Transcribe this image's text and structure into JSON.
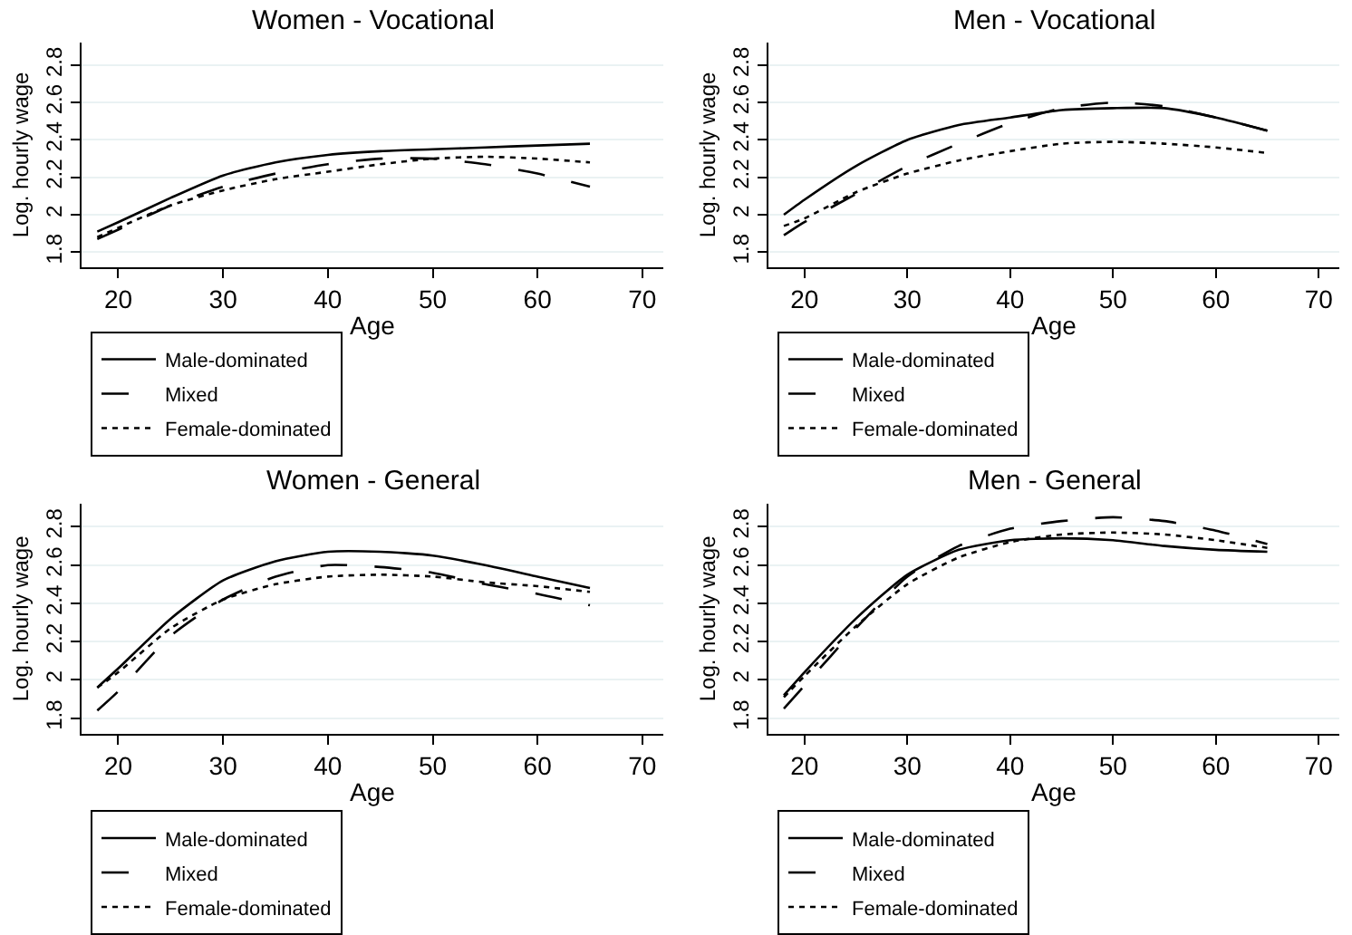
{
  "chart_data": [
    {
      "type": "line",
      "title": "Women - Vocational",
      "xlabel": "Age",
      "ylabel": "Log. hourly wage",
      "xlim": [
        16.5,
        72
      ],
      "ylim": [
        1.72,
        2.92
      ],
      "xticks": [
        20,
        30,
        40,
        50,
        60,
        70
      ],
      "yticks": [
        1.8,
        2,
        2.2,
        2.4,
        2.6,
        2.8
      ],
      "grid": "y",
      "legend": "bottom",
      "marker": "none",
      "x": [
        18,
        20,
        25,
        30,
        35,
        40,
        45,
        50,
        55,
        60,
        65
      ],
      "series": [
        {
          "name": "Male-dominated",
          "color": "#000000",
          "line_style": "solid",
          "values": [
            1.91,
            1.96,
            2.09,
            2.21,
            2.28,
            2.32,
            2.34,
            2.35,
            2.36,
            2.37,
            2.38
          ]
        },
        {
          "name": "Mixed",
          "color": "#000000",
          "line_style": "dashed",
          "values": [
            1.87,
            1.92,
            2.05,
            2.15,
            2.22,
            2.27,
            2.3,
            2.3,
            2.27,
            2.22,
            2.15
          ]
        },
        {
          "name": "Female-dominated",
          "color": "#000000",
          "line_style": "dotted",
          "values": [
            1.88,
            1.93,
            2.05,
            2.13,
            2.19,
            2.23,
            2.27,
            2.3,
            2.31,
            2.3,
            2.28
          ]
        }
      ]
    },
    {
      "type": "line",
      "title": "Men - Vocational",
      "xlabel": "Age",
      "ylabel": "Log. hourly wage",
      "xlim": [
        16.5,
        72
      ],
      "ylim": [
        1.72,
        2.92
      ],
      "xticks": [
        20,
        30,
        40,
        50,
        60,
        70
      ],
      "yticks": [
        1.8,
        2,
        2.2,
        2.4,
        2.6,
        2.8
      ],
      "grid": "y",
      "legend": "bottom",
      "marker": "none",
      "x": [
        18,
        20,
        25,
        30,
        35,
        40,
        45,
        50,
        55,
        60,
        65
      ],
      "series": [
        {
          "name": "Male-dominated",
          "color": "#000000",
          "line_style": "solid",
          "values": [
            2.0,
            2.08,
            2.26,
            2.4,
            2.48,
            2.52,
            2.56,
            2.57,
            2.57,
            2.52,
            2.45
          ]
        },
        {
          "name": "Mixed",
          "color": "#000000",
          "line_style": "dashed",
          "values": [
            1.89,
            1.96,
            2.11,
            2.26,
            2.38,
            2.49,
            2.57,
            2.6,
            2.58,
            2.52,
            2.45
          ]
        },
        {
          "name": "Female-dominated",
          "color": "#000000",
          "line_style": "dotted",
          "values": [
            1.94,
            1.98,
            2.12,
            2.22,
            2.29,
            2.34,
            2.38,
            2.39,
            2.38,
            2.36,
            2.33
          ]
        }
      ]
    },
    {
      "type": "line",
      "title": "Women - General",
      "xlabel": "Age",
      "ylabel": "Log. hourly wage",
      "xlim": [
        16.5,
        72
      ],
      "ylim": [
        1.72,
        2.92
      ],
      "xticks": [
        20,
        30,
        40,
        50,
        60,
        70
      ],
      "yticks": [
        1.8,
        2,
        2.2,
        2.4,
        2.6,
        2.8
      ],
      "grid": "y",
      "legend": "bottom",
      "marker": "none",
      "x": [
        18,
        20,
        25,
        30,
        35,
        40,
        45,
        50,
        55,
        60,
        65
      ],
      "series": [
        {
          "name": "Male-dominated",
          "color": "#000000",
          "line_style": "solid",
          "values": [
            1.96,
            2.06,
            2.32,
            2.52,
            2.62,
            2.67,
            2.67,
            2.65,
            2.6,
            2.54,
            2.48
          ]
        },
        {
          "name": "Mixed",
          "color": "#000000",
          "line_style": "dashed",
          "values": [
            1.84,
            1.94,
            2.23,
            2.42,
            2.54,
            2.6,
            2.59,
            2.56,
            2.5,
            2.45,
            2.39
          ]
        },
        {
          "name": "Female-dominated",
          "color": "#000000",
          "line_style": "dotted",
          "values": [
            1.96,
            2.04,
            2.27,
            2.42,
            2.5,
            2.54,
            2.55,
            2.54,
            2.51,
            2.49,
            2.46
          ]
        }
      ]
    },
    {
      "type": "line",
      "title": "Men - General",
      "xlabel": "Age",
      "ylabel": "Log. hourly wage",
      "xlim": [
        16.5,
        72
      ],
      "ylim": [
        1.72,
        2.92
      ],
      "xticks": [
        20,
        30,
        40,
        50,
        60,
        70
      ],
      "yticks": [
        1.8,
        2,
        2.2,
        2.4,
        2.6,
        2.8
      ],
      "grid": "y",
      "legend": "bottom",
      "marker": "none",
      "x": [
        18,
        20,
        25,
        30,
        35,
        40,
        45,
        50,
        55,
        60,
        65
      ],
      "series": [
        {
          "name": "Male-dominated",
          "color": "#000000",
          "line_style": "solid",
          "values": [
            1.92,
            2.04,
            2.32,
            2.55,
            2.68,
            2.73,
            2.74,
            2.73,
            2.7,
            2.68,
            2.67
          ]
        },
        {
          "name": "Mixed",
          "color": "#000000",
          "line_style": "dashed",
          "values": [
            1.85,
            1.97,
            2.27,
            2.54,
            2.7,
            2.79,
            2.83,
            2.85,
            2.83,
            2.78,
            2.71
          ]
        },
        {
          "name": "Female-dominated",
          "color": "#000000",
          "line_style": "dotted",
          "values": [
            1.91,
            2.02,
            2.28,
            2.5,
            2.64,
            2.72,
            2.76,
            2.77,
            2.76,
            2.73,
            2.69
          ]
        }
      ]
    }
  ]
}
